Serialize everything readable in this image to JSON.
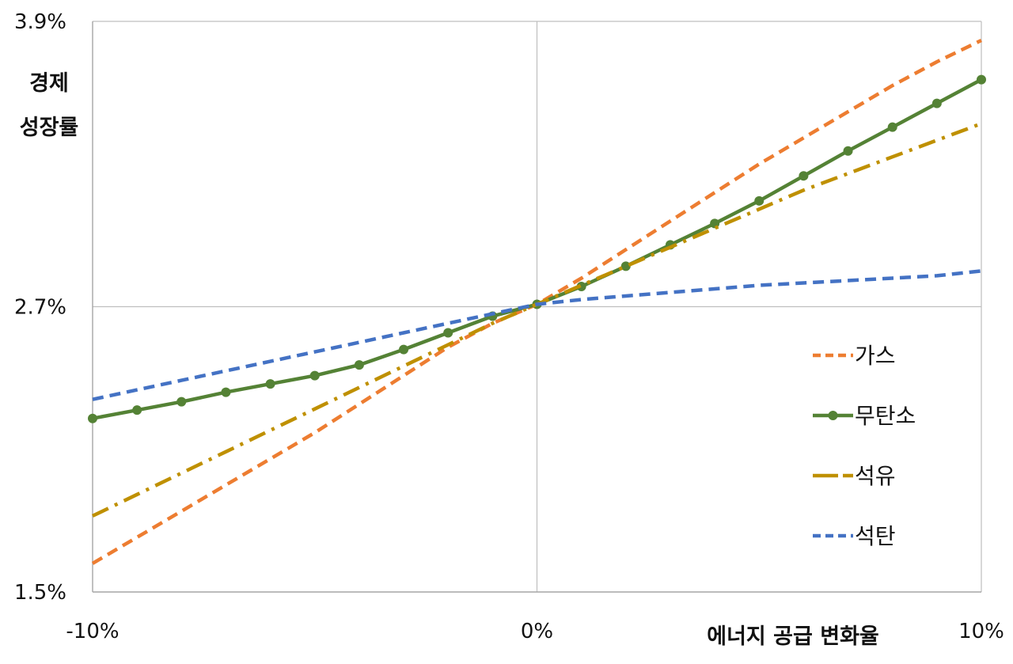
{
  "chart_data": {
    "type": "line",
    "title": "",
    "xlabel": "에너지 공급 변화율",
    "ylabel": [
      "경제",
      "성장률"
    ],
    "xlim": [
      -10,
      10
    ],
    "ylim": [
      1.5,
      3.9
    ],
    "x_ticks": [
      {
        "value": -10,
        "label": "-10%"
      },
      {
        "value": 0,
        "label": "0%"
      },
      {
        "value": 10,
        "label": "10%"
      }
    ],
    "y_ticks": [
      {
        "value": 1.5,
        "label": "1.5%"
      },
      {
        "value": 2.7,
        "label": "2.7%"
      },
      {
        "value": 3.9,
        "label": "3.9%"
      }
    ],
    "gridlines": {
      "x": [
        0,
        10
      ],
      "y": [
        2.7,
        3.9
      ]
    },
    "legend_position": "right",
    "series": [
      {
        "name": "가스",
        "color": "#ED7D31",
        "dash": "dashed",
        "markers": false,
        "x": [
          -10,
          -9,
          -8,
          -7,
          -6,
          -5,
          -4,
          -3,
          -2,
          -1,
          0,
          1,
          2,
          3,
          4,
          5,
          6,
          7,
          8,
          9,
          10
        ],
        "y": [
          1.62,
          1.73,
          1.84,
          1.95,
          2.06,
          2.17,
          2.29,
          2.41,
          2.53,
          2.63,
          2.71,
          2.82,
          2.94,
          3.06,
          3.18,
          3.3,
          3.41,
          3.52,
          3.63,
          3.73,
          3.82
        ]
      },
      {
        "name": "무탄소",
        "color": "#548235",
        "dash": "solid",
        "markers": true,
        "x": [
          -10,
          -9,
          -8,
          -7,
          -6,
          -5,
          -4,
          -3,
          -2,
          -1,
          0,
          1,
          2,
          3,
          4,
          5,
          6,
          7,
          8,
          9,
          10
        ],
        "y": [
          2.23,
          2.265,
          2.3,
          2.34,
          2.375,
          2.41,
          2.455,
          2.52,
          2.59,
          2.66,
          2.71,
          2.785,
          2.87,
          2.96,
          3.05,
          3.145,
          3.25,
          3.355,
          3.455,
          3.555,
          3.655
        ]
      },
      {
        "name": "석유",
        "color": "#BF9000",
        "dash": "dashdot",
        "markers": false,
        "x": [
          -10,
          -9,
          -8,
          -7,
          -6,
          -5,
          -4,
          -3,
          -2,
          -1,
          0,
          1,
          2,
          3,
          4,
          5,
          6,
          7,
          8,
          9,
          10
        ],
        "y": [
          1.82,
          1.91,
          2.0,
          2.09,
          2.18,
          2.27,
          2.36,
          2.45,
          2.54,
          2.63,
          2.71,
          2.79,
          2.87,
          2.95,
          3.03,
          3.11,
          3.19,
          3.26,
          3.33,
          3.4,
          3.47
        ]
      },
      {
        "name": "석탄",
        "color": "#4472C4",
        "dash": "dashed",
        "markers": false,
        "x": [
          -10,
          -9,
          -8,
          -7,
          -6,
          -5,
          -4,
          -3,
          -2,
          -1,
          0,
          1,
          2,
          3,
          4,
          5,
          6,
          7,
          8,
          9,
          10
        ],
        "y": [
          2.31,
          2.35,
          2.39,
          2.43,
          2.47,
          2.51,
          2.55,
          2.59,
          2.63,
          2.67,
          2.71,
          2.73,
          2.745,
          2.76,
          2.775,
          2.79,
          2.8,
          2.81,
          2.82,
          2.83,
          2.85
        ]
      }
    ]
  }
}
